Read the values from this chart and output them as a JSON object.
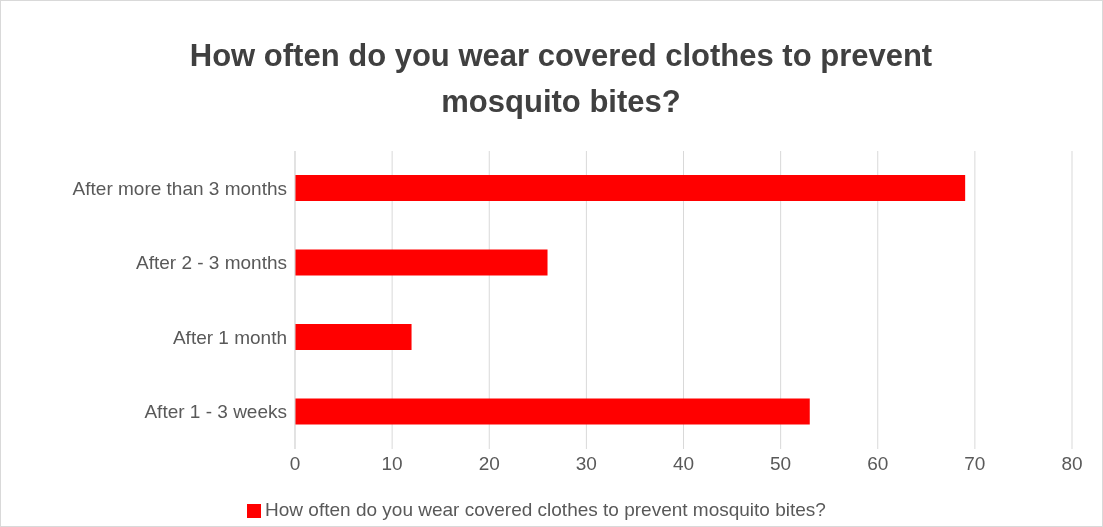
{
  "chart_data": {
    "type": "bar",
    "orientation": "horizontal",
    "title": "How often do you wear covered clothes to prevent mosquito bites?",
    "categories": [
      "After more than 3 months",
      "After 2 - 3 months",
      "After 1 month",
      "After 1 - 3 weeks"
    ],
    "series": [
      {
        "name": "How often do you wear covered clothes to prevent mosquito bites?",
        "color": "#ff0000",
        "values": [
          69,
          26,
          12,
          53
        ]
      }
    ],
    "xlim": [
      0,
      80
    ],
    "xticks": [
      0,
      10,
      20,
      30,
      40,
      50,
      60,
      70,
      80
    ],
    "grid": "x",
    "legend": "bottom"
  }
}
